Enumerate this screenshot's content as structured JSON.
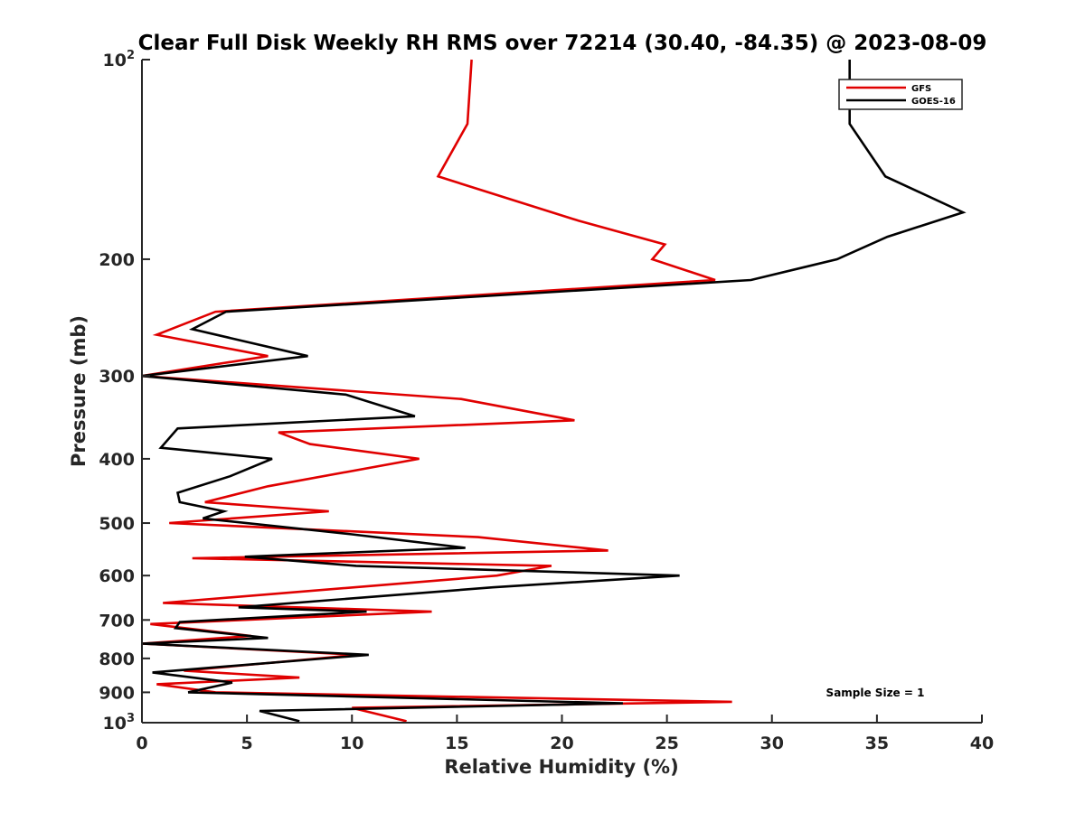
{
  "chart_data": {
    "type": "line",
    "orientation": "profile",
    "title": "Clear Full Disk Weekly RH RMS over 72214 (30.40, -84.35) @ 2023-08-09",
    "xlabel": "Relative Humidity (%)",
    "ylabel": "Pressure (mb)",
    "xlim": [
      0,
      40
    ],
    "ylim": [
      100,
      1000
    ],
    "yscale": "log",
    "yreversed": true,
    "x_ticks": [
      "0",
      "5",
      "10",
      "15",
      "20",
      "25",
      "30",
      "35",
      "40"
    ],
    "y_ticks": [
      {
        "value": 100,
        "base": "10",
        "exp": "2"
      },
      {
        "value": 200,
        "label": "200"
      },
      {
        "value": 300,
        "label": "300"
      },
      {
        "value": 400,
        "label": "400"
      },
      {
        "value": 500,
        "label": "500"
      },
      {
        "value": 600,
        "label": "600"
      },
      {
        "value": 700,
        "label": "700"
      },
      {
        "value": 800,
        "label": "800"
      },
      {
        "value": 900,
        "label": "900"
      },
      {
        "value": 1000,
        "base": "10",
        "exp": "3"
      }
    ],
    "legend_position": "top-right",
    "annotation": "Sample Size = 1",
    "series": [
      {
        "name": "GFS",
        "color": "#e00000",
        "points": [
          [
            15.7,
            100
          ],
          [
            15.5,
            125
          ],
          [
            14.1,
            150
          ],
          [
            20.8,
            175
          ],
          [
            24.9,
            190
          ],
          [
            24.3,
            200
          ],
          [
            27.3,
            215
          ],
          [
            3.5,
            240
          ],
          [
            0.7,
            260
          ],
          [
            6.0,
            280
          ],
          [
            0.0,
            300
          ],
          [
            15.2,
            325
          ],
          [
            20.6,
            350
          ],
          [
            6.5,
            365
          ],
          [
            8.0,
            380
          ],
          [
            13.2,
            400
          ],
          [
            6.0,
            440
          ],
          [
            3.0,
            465
          ],
          [
            8.9,
            480
          ],
          [
            1.3,
            500
          ],
          [
            16.0,
            525
          ],
          [
            22.2,
            550
          ],
          [
            2.4,
            565
          ],
          [
            19.5,
            580
          ],
          [
            16.9,
            600
          ],
          [
            1.0,
            660
          ],
          [
            13.8,
            680
          ],
          [
            0.4,
            710
          ],
          [
            5.2,
            740
          ],
          [
            0.0,
            760
          ],
          [
            10.3,
            790
          ],
          [
            2.0,
            835
          ],
          [
            7.5,
            855
          ],
          [
            0.7,
            875
          ],
          [
            3.5,
            900
          ],
          [
            28.1,
            930
          ],
          [
            10.0,
            950
          ],
          [
            12.6,
            995
          ]
        ]
      },
      {
        "name": "GOES-16",
        "color": "#000000",
        "points": [
          [
            33.7,
            100
          ],
          [
            33.7,
            125
          ],
          [
            35.4,
            150
          ],
          [
            39.1,
            170
          ],
          [
            35.5,
            185
          ],
          [
            33.1,
            200
          ],
          [
            29.0,
            215
          ],
          [
            4.0,
            240
          ],
          [
            2.4,
            255
          ],
          [
            7.9,
            280
          ],
          [
            0.0,
            300
          ],
          [
            9.7,
            320
          ],
          [
            13.0,
            345
          ],
          [
            1.7,
            360
          ],
          [
            0.9,
            385
          ],
          [
            6.2,
            400
          ],
          [
            4.2,
            425
          ],
          [
            1.7,
            450
          ],
          [
            1.8,
            465
          ],
          [
            3.9,
            480
          ],
          [
            2.9,
            492
          ],
          [
            10.0,
            520
          ],
          [
            15.4,
            545
          ],
          [
            4.9,
            562
          ],
          [
            10.2,
            580
          ],
          [
            25.6,
            600
          ],
          [
            16.7,
            625
          ],
          [
            4.6,
            670
          ],
          [
            10.7,
            680
          ],
          [
            1.8,
            705
          ],
          [
            1.6,
            720
          ],
          [
            6.0,
            745
          ],
          [
            0.0,
            760
          ],
          [
            10.8,
            790
          ],
          [
            0.5,
            840
          ],
          [
            4.3,
            870
          ],
          [
            2.2,
            900
          ],
          [
            22.9,
            935
          ],
          [
            5.6,
            960
          ],
          [
            7.5,
            995
          ]
        ]
      }
    ]
  }
}
